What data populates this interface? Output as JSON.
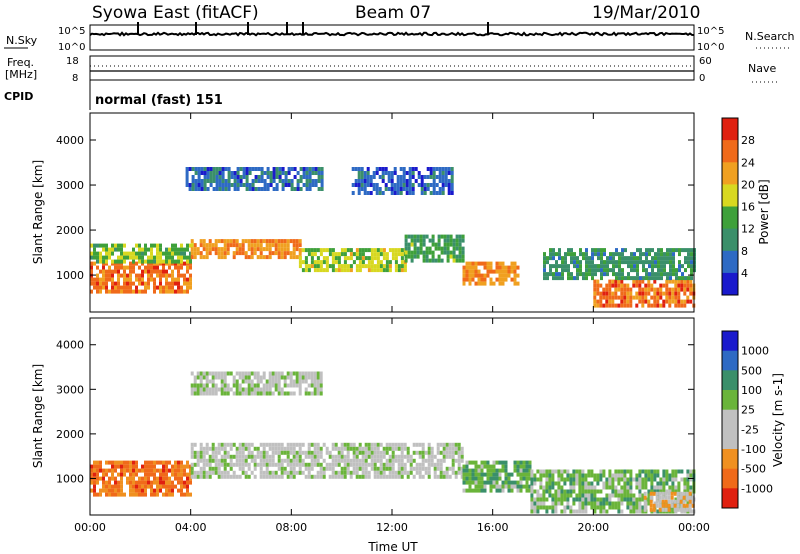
{
  "header": {
    "station": "Syowa East (fitACF)",
    "beam": "Beam 07",
    "date": "19/Mar/2010"
  },
  "side_labels": {
    "nsky": "N.Sky",
    "nsearch": "N.Search",
    "freq_line1": "Freq.",
    "freq_line2": "[MHz]",
    "nave": "Nave",
    "cpid": "CPID",
    "nsky_top_tick": "10^5",
    "nsky_bottom_tick": "10^0",
    "freq_top_tick": "18",
    "freq_bottom_tick": "8",
    "nave_top_tick": "60",
    "nave_bottom_tick": "0"
  },
  "cpid_text": "normal (fast) 151",
  "x_axis": {
    "label": "Time UT",
    "ticks": [
      "00:00",
      "04:00",
      "08:00",
      "12:00",
      "16:00",
      "20:00",
      "00:00"
    ]
  },
  "colors": {
    "power_scale": [
      "#1a1acc",
      "#2e6ac4",
      "#3a8f6a",
      "#3ea03a",
      "#d8d820",
      "#f0a020",
      "#f06a1a",
      "#e02010"
    ],
    "velocity_scale": [
      "#1a1acc",
      "#2e6ac4",
      "#3a8f6a",
      "#6ab43a",
      "#c0c0c0",
      "#c0c0c0",
      "#f09020",
      "#f06a1a",
      "#e02010"
    ]
  },
  "chart_data": [
    {
      "type": "heatmap",
      "panel": "power",
      "ylabel": "Slant Range [km]",
      "xlabel": "",
      "xlim": [
        0,
        24
      ],
      "ylim": [
        180,
        4600
      ],
      "y_ticks": [
        1000,
        2000,
        3000,
        4000
      ],
      "colorbar": {
        "label": "Power [dB]",
        "ticks": [
          "4",
          "8",
          "12",
          "16",
          "20",
          "24",
          "28"
        ],
        "range": [
          0,
          30
        ]
      },
      "regions": [
        {
          "t0": 0.0,
          "t1": 4.0,
          "r0": 600,
          "r1": 1300,
          "value": 24
        },
        {
          "t0": 0.0,
          "t1": 4.0,
          "r0": 1300,
          "r1": 1700,
          "value": 14
        },
        {
          "t0": 4.0,
          "t1": 8.3,
          "r0": 1400,
          "r1": 1800,
          "value": 22
        },
        {
          "t0": 8.3,
          "t1": 12.5,
          "r0": 1100,
          "r1": 1600,
          "value": 16
        },
        {
          "t0": 12.5,
          "t1": 14.8,
          "r0": 1300,
          "r1": 1900,
          "value": 12
        },
        {
          "t0": 14.8,
          "t1": 17.0,
          "r0": 800,
          "r1": 1300,
          "value": 22
        },
        {
          "t0": 3.8,
          "t1": 9.2,
          "r0": 2900,
          "r1": 3400,
          "value": 6
        },
        {
          "t0": 10.4,
          "t1": 14.4,
          "r0": 2800,
          "r1": 3400,
          "value": 5
        },
        {
          "t0": 20.0,
          "t1": 24.0,
          "r0": 300,
          "r1": 900,
          "value": 24
        },
        {
          "t0": 18.0,
          "t1": 24.0,
          "r0": 900,
          "r1": 1600,
          "value": 10
        }
      ]
    },
    {
      "type": "heatmap",
      "panel": "velocity",
      "ylabel": "Slant Range [km]",
      "xlabel": "Time UT",
      "xlim": [
        0,
        24
      ],
      "ylim": [
        180,
        4600
      ],
      "y_ticks": [
        1000,
        2000,
        3000,
        4000
      ],
      "colorbar": {
        "label": "Velocity [m s-1]",
        "ticks": [
          "1000",
          "500",
          "100",
          "25",
          "-25",
          "-100",
          "-500",
          "-1000"
        ],
        "range": [
          -1000,
          1000
        ]
      },
      "regions": [
        {
          "t0": 0.0,
          "t1": 4.0,
          "r0": 600,
          "r1": 1400,
          "value": -600
        },
        {
          "t0": 4.0,
          "t1": 14.8,
          "r0": 1000,
          "r1": 1800,
          "value": 0
        },
        {
          "t0": 4.0,
          "t1": 9.2,
          "r0": 2900,
          "r1": 3400,
          "value": 0
        },
        {
          "t0": 14.8,
          "t1": 17.5,
          "r0": 700,
          "r1": 1400,
          "value": 300
        },
        {
          "t0": 17.5,
          "t1": 24.0,
          "r0": 300,
          "r1": 1200,
          "value": 200
        },
        {
          "t0": 22.0,
          "t1": 24.0,
          "r0": 300,
          "r1": 700,
          "value": -300
        }
      ]
    }
  ]
}
